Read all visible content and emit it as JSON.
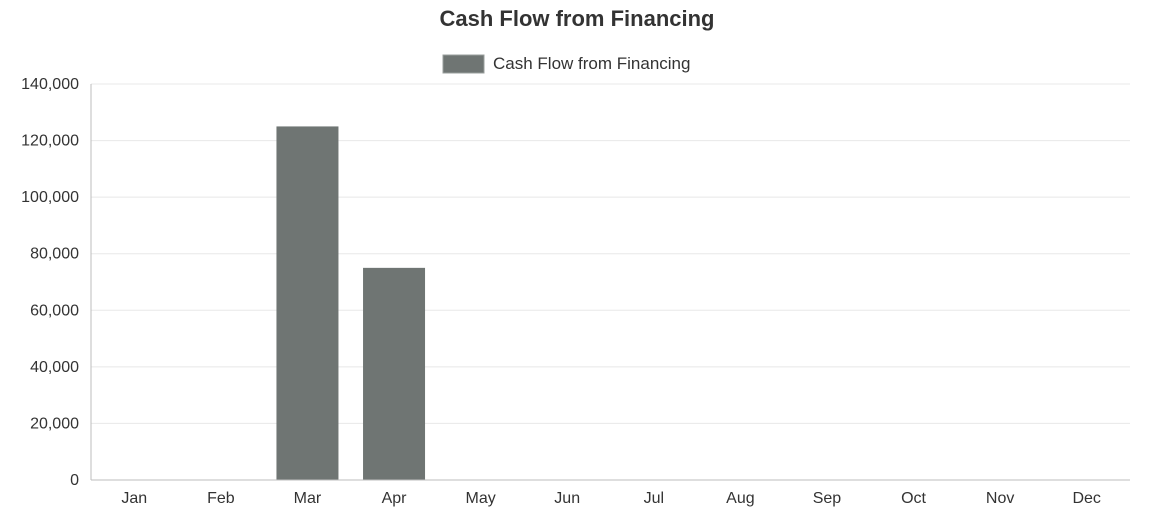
{
  "chart_data": {
    "type": "bar",
    "title": "Cash Flow from Financing",
    "xlabel": "",
    "ylabel": "",
    "categories": [
      "Jan",
      "Feb",
      "Mar",
      "Apr",
      "May",
      "Jun",
      "Jul",
      "Aug",
      "Sep",
      "Oct",
      "Nov",
      "Dec"
    ],
    "series": [
      {
        "name": "Cash Flow from Financing",
        "values": [
          0,
          0,
          125000,
          75000,
          0,
          0,
          0,
          0,
          0,
          0,
          0,
          0
        ],
        "color": "#6f7573"
      }
    ],
    "yticks": [
      "0",
      "20,000",
      "40,000",
      "60,000",
      "80,000",
      "100,000",
      "120,000",
      "140,000"
    ],
    "ylim": [
      0,
      140000
    ],
    "grid": true,
    "legend_position": "top-center"
  }
}
